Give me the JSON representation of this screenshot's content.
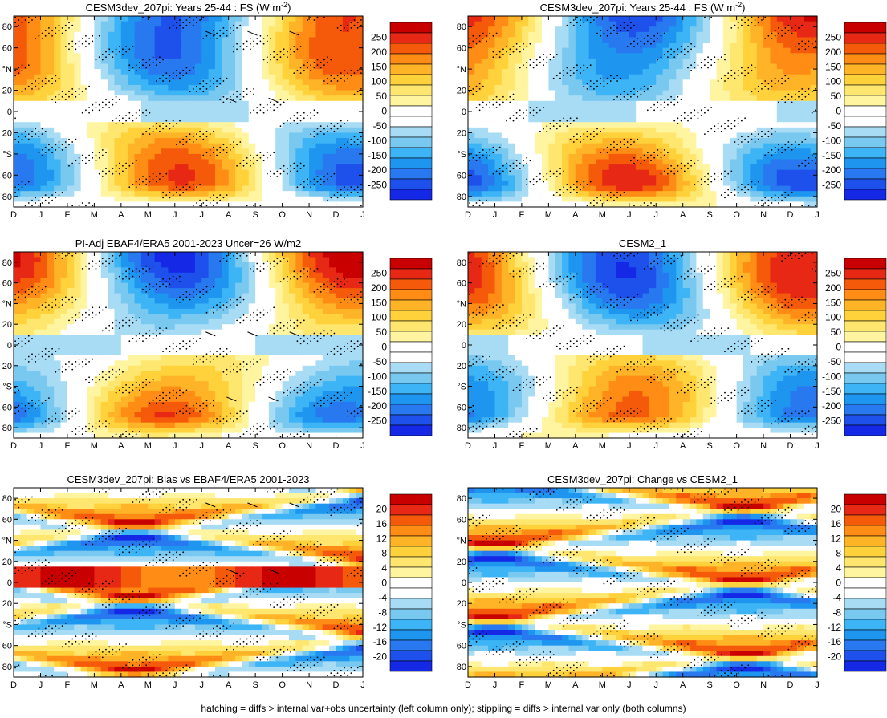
{
  "footer": "hatching = diffs > internal var+obs uncertainty (left column only); stippling = diffs > internal var only (both columns)",
  "chart_data": [
    {
      "type": "heatmap",
      "title": "CESM3dev_207pi: Years 25-44 : FS (W m",
      "title_sup": "-2",
      "title_end": ")",
      "x_ticks": [
        "D",
        "J",
        "F",
        "M",
        "A",
        "M",
        "J",
        "J",
        "A",
        "S",
        "O",
        "N",
        "D",
        "J"
      ],
      "y_ticks": [
        "80",
        "60",
        "°N",
        "20",
        "0",
        "20",
        "°S",
        "60",
        "80"
      ],
      "y_values": [
        80,
        60,
        40,
        20,
        0,
        -20,
        -40,
        -60,
        -80
      ],
      "ylim": [
        -90,
        90
      ],
      "levels": [
        -250,
        -200,
        -150,
        -100,
        -50,
        0,
        50,
        100,
        150,
        200,
        250
      ],
      "colorbar_labels": [
        "250",
        "200",
        "150",
        "100",
        "50",
        "0",
        "-50",
        "-100",
        "-150",
        "-200",
        "-250"
      ],
      "field": "climatology",
      "hatching": true,
      "stippling": true
    },
    {
      "type": "heatmap",
      "title": "CESM3dev_207pi: Years 25-44 : FS (W m",
      "title_sup": "-2",
      "title_end": ")",
      "x_ticks": [
        "D",
        "J",
        "F",
        "M",
        "A",
        "M",
        "J",
        "J",
        "A",
        "S",
        "O",
        "N",
        "D",
        "J"
      ],
      "y_ticks": [
        "80",
        "60",
        "°N",
        "20",
        "0",
        "20",
        "°S",
        "60",
        "80"
      ],
      "y_values": [
        80,
        60,
        40,
        20,
        0,
        -20,
        -40,
        -60,
        -80
      ],
      "ylim": [
        -90,
        90
      ],
      "levels": [
        -250,
        -200,
        -150,
        -100,
        -50,
        0,
        50,
        100,
        150,
        200,
        250
      ],
      "colorbar_labels": [
        "250",
        "200",
        "150",
        "100",
        "50",
        "0",
        "-50",
        "-100",
        "-150",
        "-200",
        "-250"
      ],
      "field": "climatology",
      "hatching": false,
      "stippling": true
    },
    {
      "type": "heatmap",
      "title": "PI-Adj EBAF4/ERA5 2001-2023 Uncer=26 W/m2",
      "title_sup": "",
      "title_end": "",
      "x_ticks": [
        "D",
        "J",
        "F",
        "M",
        "A",
        "M",
        "J",
        "J",
        "A",
        "S",
        "O",
        "N",
        "D",
        "J"
      ],
      "y_ticks": [
        "80",
        "60",
        "°N",
        "20",
        "0",
        "20",
        "°S",
        "60",
        "80"
      ],
      "y_values": [
        80,
        60,
        40,
        20,
        0,
        -20,
        -40,
        -60,
        -80
      ],
      "ylim": [
        -90,
        90
      ],
      "levels": [
        -250,
        -200,
        -150,
        -100,
        -50,
        0,
        50,
        100,
        150,
        200,
        250
      ],
      "colorbar_labels": [
        "250",
        "200",
        "150",
        "100",
        "50",
        "0",
        "-50",
        "-100",
        "-150",
        "-200",
        "-250"
      ],
      "field": "climatology",
      "hatching": true,
      "stippling": true
    },
    {
      "type": "heatmap",
      "title": "CESM2_1",
      "title_sup": "",
      "title_end": "",
      "x_ticks": [
        "D",
        "J",
        "F",
        "M",
        "A",
        "M",
        "J",
        "J",
        "A",
        "S",
        "O",
        "N",
        "D",
        "J"
      ],
      "y_ticks": [
        "80",
        "60",
        "°N",
        "20",
        "0",
        "20",
        "°S",
        "60",
        "80"
      ],
      "y_values": [
        80,
        60,
        40,
        20,
        0,
        -20,
        -40,
        -60,
        -80
      ],
      "ylim": [
        -90,
        90
      ],
      "levels": [
        -250,
        -200,
        -150,
        -100,
        -50,
        0,
        50,
        100,
        150,
        200,
        250
      ],
      "colorbar_labels": [
        "250",
        "200",
        "150",
        "100",
        "50",
        "0",
        "-50",
        "-100",
        "-150",
        "-200",
        "-250"
      ],
      "field": "climatology",
      "hatching": false,
      "stippling": true
    },
    {
      "type": "heatmap",
      "title": "CESM3dev_207pi: Bias vs EBAF4/ERA5 2001-2023",
      "title_sup": "",
      "title_end": "",
      "x_ticks": [
        "D",
        "J",
        "F",
        "M",
        "A",
        "M",
        "J",
        "J",
        "A",
        "S",
        "O",
        "N",
        "D",
        "J"
      ],
      "y_ticks": [
        "80",
        "60",
        "°N",
        "20",
        "0",
        "20",
        "°S",
        "60",
        "80"
      ],
      "y_values": [
        80,
        60,
        40,
        20,
        0,
        -20,
        -40,
        -60,
        -80
      ],
      "ylim": [
        -90,
        90
      ],
      "levels": [
        -20,
        -16,
        -12,
        -8,
        -4,
        0,
        4,
        8,
        12,
        16,
        20
      ],
      "colorbar_labels": [
        "20",
        "16",
        "12",
        "8",
        "4",
        "0",
        "-4",
        "-8",
        "-12",
        "-16",
        "-20"
      ],
      "field": "bias",
      "hatching": true,
      "stippling": true
    },
    {
      "type": "heatmap",
      "title": "CESM3dev_207pi: Change vs CESM2_1",
      "title_sup": "",
      "title_end": "",
      "x_ticks": [
        "D",
        "J",
        "F",
        "M",
        "A",
        "M",
        "J",
        "J",
        "A",
        "S",
        "O",
        "N",
        "D",
        "J"
      ],
      "y_ticks": [
        "80",
        "60",
        "°N",
        "20",
        "0",
        "20",
        "°S",
        "60",
        "80"
      ],
      "y_values": [
        80,
        60,
        40,
        20,
        0,
        -20,
        -40,
        -60,
        -80
      ],
      "ylim": [
        -90,
        90
      ],
      "levels": [
        -20,
        -16,
        -12,
        -8,
        -4,
        0,
        4,
        8,
        12,
        16,
        20
      ],
      "colorbar_labels": [
        "20",
        "16",
        "12",
        "8",
        "4",
        "0",
        "-4",
        "-8",
        "-12",
        "-16",
        "-20"
      ],
      "field": "change",
      "hatching": false,
      "stippling": true
    }
  ],
  "colors": {
    "palette": [
      "#1428e6",
      "#1e50ec",
      "#2878f0",
      "#1e96f0",
      "#3cb4f5",
      "#78c8f0",
      "#a8dcf5",
      "#ffffff",
      "#ffffff",
      "#fff5a0",
      "#ffe66e",
      "#ffd23c",
      "#ffb428",
      "#ff8c14",
      "#f55a0a",
      "#e62814",
      "#c80000"
    ]
  }
}
